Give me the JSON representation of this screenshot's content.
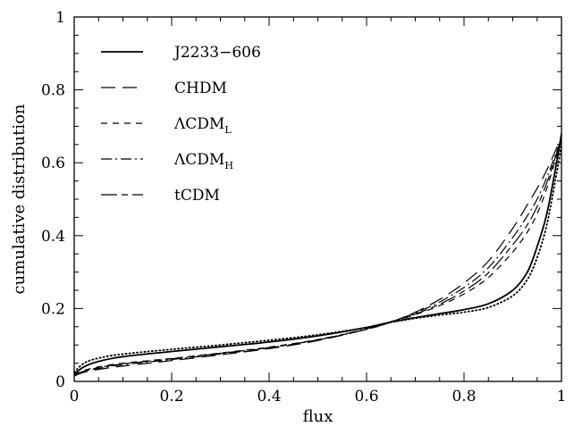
{
  "chart_data": {
    "type": "line",
    "xlabel": "flux",
    "ylabel": "cumulative distribution",
    "xlim": [
      0,
      1
    ],
    "ylim": [
      0,
      1
    ],
    "xticks": [
      "0",
      "0.2",
      "0.4",
      "0.6",
      "0.8",
      "1"
    ],
    "yticks": [
      "0",
      "0.2",
      "0.4",
      "0.6",
      "0.8",
      "1"
    ],
    "grid": false,
    "legend_position": "top-left",
    "legend": [
      {
        "label": "J2233−606",
        "sub": "",
        "style": "solid"
      },
      {
        "label": "CHDM",
        "sub": "",
        "style": "long-dash"
      },
      {
        "label": "ΛCDM",
        "sub": "L",
        "style": "short-dash"
      },
      {
        "label": "ΛCDM",
        "sub": "H",
        "style": "dash-dot"
      },
      {
        "label": "tCDM",
        "sub": "",
        "style": "long-short-dash"
      }
    ],
    "series": [
      {
        "name": "J2233−606",
        "style": "solid",
        "x": [
          0,
          0.02,
          0.05,
          0.1,
          0.2,
          0.3,
          0.4,
          0.5,
          0.6,
          0.65,
          0.7,
          0.75,
          0.8,
          0.85,
          0.9,
          0.93,
          0.95,
          0.97,
          0.99,
          1.0
        ],
        "y": [
          0.02,
          0.04,
          0.055,
          0.068,
          0.082,
          0.095,
          0.108,
          0.125,
          0.148,
          0.163,
          0.175,
          0.186,
          0.197,
          0.213,
          0.25,
          0.3,
          0.37,
          0.46,
          0.6,
          0.68
        ]
      },
      {
        "name": "CHDM",
        "style": "long-dash",
        "x": [
          0,
          0.02,
          0.05,
          0.1,
          0.2,
          0.3,
          0.4,
          0.5,
          0.6,
          0.65,
          0.7,
          0.75,
          0.8,
          0.85,
          0.9,
          0.93,
          0.95,
          0.97,
          0.99,
          1.0
        ],
        "y": [
          0.015,
          0.025,
          0.033,
          0.042,
          0.057,
          0.073,
          0.09,
          0.112,
          0.143,
          0.163,
          0.19,
          0.225,
          0.27,
          0.33,
          0.42,
          0.485,
          0.53,
          0.58,
          0.64,
          0.67
        ]
      },
      {
        "name": "ΛCDM L",
        "style": "short-dash",
        "x": [
          0,
          0.02,
          0.05,
          0.1,
          0.2,
          0.3,
          0.4,
          0.5,
          0.6,
          0.65,
          0.7,
          0.75,
          0.8,
          0.85,
          0.9,
          0.93,
          0.95,
          0.97,
          0.99,
          1.0
        ],
        "y": [
          0.018,
          0.03,
          0.04,
          0.05,
          0.063,
          0.078,
          0.094,
          0.115,
          0.143,
          0.162,
          0.183,
          0.208,
          0.24,
          0.285,
          0.355,
          0.41,
          0.46,
          0.53,
          0.62,
          0.66
        ]
      },
      {
        "name": "ΛCDM H",
        "style": "dash-dot",
        "x": [
          0,
          0.02,
          0.05,
          0.1,
          0.2,
          0.3,
          0.4,
          0.5,
          0.6,
          0.65,
          0.7,
          0.75,
          0.8,
          0.85,
          0.9,
          0.93,
          0.95,
          0.97,
          0.99,
          1.0
        ],
        "y": [
          0.016,
          0.027,
          0.036,
          0.046,
          0.06,
          0.075,
          0.092,
          0.114,
          0.144,
          0.164,
          0.188,
          0.218,
          0.258,
          0.312,
          0.395,
          0.455,
          0.5,
          0.56,
          0.63,
          0.665
        ]
      },
      {
        "name": "tCDM",
        "style": "long-short-dash",
        "x": [
          0,
          0.02,
          0.05,
          0.1,
          0.2,
          0.3,
          0.4,
          0.5,
          0.6,
          0.65,
          0.7,
          0.75,
          0.8,
          0.85,
          0.9,
          0.93,
          0.95,
          0.97,
          0.99,
          1.0
        ],
        "y": [
          0.017,
          0.028,
          0.038,
          0.048,
          0.062,
          0.077,
          0.093,
          0.114,
          0.143,
          0.163,
          0.185,
          0.212,
          0.248,
          0.298,
          0.375,
          0.43,
          0.48,
          0.545,
          0.625,
          0.662
        ]
      },
      {
        "name": "",
        "style": "dotted",
        "x": [
          0,
          0.02,
          0.05,
          0.1,
          0.2,
          0.3,
          0.4,
          0.5,
          0.6,
          0.65,
          0.7,
          0.75,
          0.8,
          0.85,
          0.9,
          0.93,
          0.95,
          0.97,
          0.99,
          1.0
        ],
        "y": [
          0.025,
          0.05,
          0.064,
          0.075,
          0.088,
          0.1,
          0.113,
          0.128,
          0.148,
          0.162,
          0.173,
          0.182,
          0.19,
          0.203,
          0.235,
          0.28,
          0.34,
          0.43,
          0.57,
          0.65
        ]
      }
    ]
  }
}
